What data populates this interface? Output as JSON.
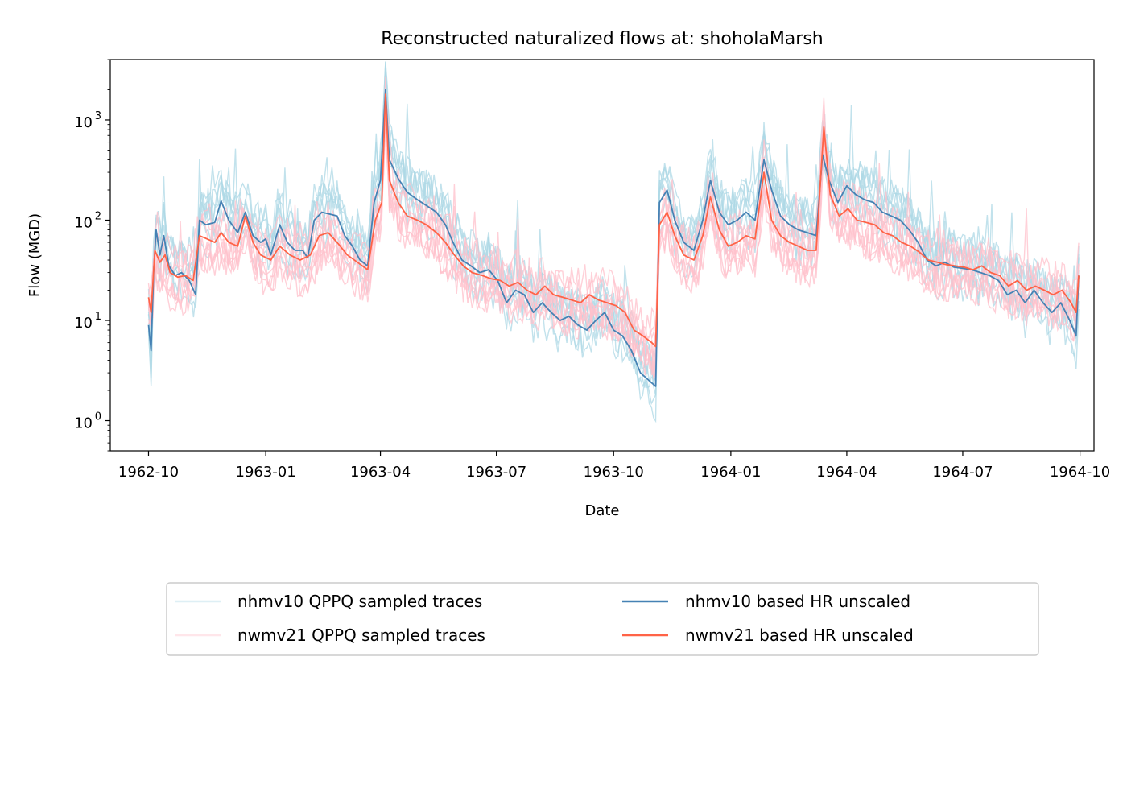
{
  "chart_data": {
    "type": "line",
    "title": "Reconstructed naturalized flows at: shoholaMarsh",
    "xlabel": "Date",
    "ylabel": "Flow (MGD)",
    "yscale": "log",
    "ylim": [
      0.5,
      4000
    ],
    "xlim": [
      "1962-09-01",
      "1964-10-12"
    ],
    "x_ticks": [
      "1962-10",
      "1963-01",
      "1963-04",
      "1963-07",
      "1963-10",
      "1964-01",
      "1964-04",
      "1964-07",
      "1964-10"
    ],
    "y_ticks": [
      {
        "base": "10",
        "exp": "0",
        "value": 1
      },
      {
        "base": "10",
        "exp": "1",
        "value": 10
      },
      {
        "base": "10",
        "exp": "2",
        "value": 100
      },
      {
        "base": "10",
        "exp": "3",
        "value": 1000
      }
    ],
    "grid": false,
    "legend_position": "bottom-center",
    "legend": [
      {
        "label": "nhmv10 QPPQ sampled traces",
        "color": "#add8e6",
        "opacity": 0.4
      },
      {
        "label": "nwmv21 QPPQ sampled traces",
        "color": "#ffc0cb",
        "opacity": 0.4
      },
      {
        "label": "nhmv10 based HR unscaled",
        "color": "#4682b4",
        "opacity": 1
      },
      {
        "label": "nwmv21 based HR unscaled",
        "color": "#ff6347",
        "opacity": 1
      }
    ],
    "series": [
      {
        "name": "nhmv10 based HR unscaled",
        "color": "#4682b4",
        "points": [
          [
            "1962-10-01",
            9
          ],
          [
            "1962-10-03",
            5
          ],
          [
            "1962-10-05",
            30
          ],
          [
            "1962-10-07",
            80
          ],
          [
            "1962-10-10",
            45
          ],
          [
            "1962-10-13",
            70
          ],
          [
            "1962-10-17",
            35
          ],
          [
            "1962-10-22",
            28
          ],
          [
            "1962-10-27",
            30
          ],
          [
            "1962-11-02",
            25
          ],
          [
            "1962-11-07",
            18
          ],
          [
            "1962-11-10",
            100
          ],
          [
            "1962-11-15",
            90
          ],
          [
            "1962-11-22",
            95
          ],
          [
            "1962-11-27",
            155
          ],
          [
            "1962-12-03",
            100
          ],
          [
            "1962-12-10",
            75
          ],
          [
            "1962-12-16",
            120
          ],
          [
            "1962-12-22",
            70
          ],
          [
            "1962-12-28",
            60
          ],
          [
            "1963-01-01",
            65
          ],
          [
            "1963-01-05",
            45
          ],
          [
            "1963-01-12",
            90
          ],
          [
            "1963-01-18",
            60
          ],
          [
            "1963-01-24",
            50
          ],
          [
            "1963-01-30",
            50
          ],
          [
            "1963-02-03",
            42
          ],
          [
            "1963-02-08",
            100
          ],
          [
            "1963-02-14",
            120
          ],
          [
            "1963-02-20",
            115
          ],
          [
            "1963-02-26",
            110
          ],
          [
            "1963-03-04",
            70
          ],
          [
            "1963-03-10",
            55
          ],
          [
            "1963-03-16",
            40
          ],
          [
            "1963-03-22",
            35
          ],
          [
            "1963-03-27",
            150
          ],
          [
            "1963-04-01",
            250
          ],
          [
            "1963-04-05",
            2000
          ],
          [
            "1963-04-08",
            400
          ],
          [
            "1963-04-15",
            260
          ],
          [
            "1963-04-22",
            190
          ],
          [
            "1963-04-30",
            160
          ],
          [
            "1963-05-07",
            140
          ],
          [
            "1963-05-15",
            120
          ],
          [
            "1963-05-22",
            90
          ],
          [
            "1963-05-28",
            60
          ],
          [
            "1963-06-04",
            40
          ],
          [
            "1963-06-11",
            35
          ],
          [
            "1963-06-18",
            30
          ],
          [
            "1963-06-25",
            32
          ],
          [
            "1963-07-02",
            25
          ],
          [
            "1963-07-09",
            15
          ],
          [
            "1963-07-16",
            20
          ],
          [
            "1963-07-23",
            18
          ],
          [
            "1963-07-30",
            12
          ],
          [
            "1963-08-06",
            15
          ],
          [
            "1963-08-13",
            12
          ],
          [
            "1963-08-20",
            10
          ],
          [
            "1963-08-27",
            11
          ],
          [
            "1963-09-03",
            9
          ],
          [
            "1963-09-10",
            8
          ],
          [
            "1963-09-17",
            10
          ],
          [
            "1963-09-24",
            12
          ],
          [
            "1963-10-01",
            8
          ],
          [
            "1963-10-08",
            7
          ],
          [
            "1963-10-15",
            5
          ],
          [
            "1963-10-22",
            3
          ],
          [
            "1963-10-29",
            2.5
          ],
          [
            "1963-11-03",
            2.2
          ],
          [
            "1963-11-06",
            150
          ],
          [
            "1963-11-12",
            200
          ],
          [
            "1963-11-18",
            100
          ],
          [
            "1963-11-25",
            60
          ],
          [
            "1963-12-03",
            50
          ],
          [
            "1963-12-10",
            100
          ],
          [
            "1963-12-16",
            250
          ],
          [
            "1963-12-23",
            120
          ],
          [
            "1963-12-30",
            90
          ],
          [
            "1964-01-06",
            100
          ],
          [
            "1964-01-13",
            120
          ],
          [
            "1964-01-20",
            100
          ],
          [
            "1964-01-27",
            400
          ],
          [
            "1964-02-02",
            200
          ],
          [
            "1964-02-09",
            110
          ],
          [
            "1964-02-16",
            90
          ],
          [
            "1964-02-23",
            80
          ],
          [
            "1964-03-01",
            75
          ],
          [
            "1964-03-08",
            70
          ],
          [
            "1964-03-13",
            450
          ],
          [
            "1964-03-18",
            250
          ],
          [
            "1964-03-25",
            150
          ],
          [
            "1964-04-01",
            220
          ],
          [
            "1964-04-08",
            180
          ],
          [
            "1964-04-15",
            160
          ],
          [
            "1964-04-22",
            150
          ],
          [
            "1964-04-29",
            120
          ],
          [
            "1964-05-06",
            110
          ],
          [
            "1964-05-13",
            100
          ],
          [
            "1964-05-20",
            80
          ],
          [
            "1964-05-27",
            60
          ],
          [
            "1964-06-03",
            40
          ],
          [
            "1964-06-10",
            35
          ],
          [
            "1964-06-17",
            38
          ],
          [
            "1964-06-24",
            34
          ],
          [
            "1964-07-01",
            33
          ],
          [
            "1964-07-08",
            32
          ],
          [
            "1964-07-15",
            30
          ],
          [
            "1964-07-22",
            28
          ],
          [
            "1964-07-29",
            25
          ],
          [
            "1964-08-05",
            18
          ],
          [
            "1964-08-12",
            20
          ],
          [
            "1964-08-19",
            15
          ],
          [
            "1964-08-26",
            20
          ],
          [
            "1964-09-02",
            15
          ],
          [
            "1964-09-09",
            12
          ],
          [
            "1964-09-16",
            15
          ],
          [
            "1964-09-23",
            10
          ],
          [
            "1964-09-28",
            7
          ],
          [
            "1964-09-30",
            28
          ]
        ]
      },
      {
        "name": "nwmv21 based HR unscaled",
        "color": "#ff6347",
        "points": [
          [
            "1962-10-01",
            17
          ],
          [
            "1962-10-03",
            12
          ],
          [
            "1962-10-06",
            50
          ],
          [
            "1962-10-10",
            38
          ],
          [
            "1962-10-14",
            45
          ],
          [
            "1962-10-18",
            30
          ],
          [
            "1962-10-24",
            27
          ],
          [
            "1962-10-30",
            28
          ],
          [
            "1962-11-05",
            25
          ],
          [
            "1962-11-10",
            70
          ],
          [
            "1962-11-16",
            65
          ],
          [
            "1962-11-22",
            60
          ],
          [
            "1962-11-27",
            75
          ],
          [
            "1962-12-03",
            60
          ],
          [
            "1962-12-10",
            55
          ],
          [
            "1962-12-16",
            110
          ],
          [
            "1962-12-22",
            60
          ],
          [
            "1962-12-28",
            45
          ],
          [
            "1963-01-05",
            40
          ],
          [
            "1963-01-12",
            55
          ],
          [
            "1963-01-20",
            45
          ],
          [
            "1963-01-28",
            40
          ],
          [
            "1963-02-05",
            45
          ],
          [
            "1963-02-12",
            70
          ],
          [
            "1963-02-19",
            75
          ],
          [
            "1963-02-26",
            60
          ],
          [
            "1963-03-06",
            45
          ],
          [
            "1963-03-14",
            38
          ],
          [
            "1963-03-22",
            32
          ],
          [
            "1963-03-28",
            100
          ],
          [
            "1963-04-02",
            150
          ],
          [
            "1963-04-05",
            1800
          ],
          [
            "1963-04-08",
            250
          ],
          [
            "1963-04-15",
            150
          ],
          [
            "1963-04-22",
            110
          ],
          [
            "1963-04-30",
            100
          ],
          [
            "1963-05-07",
            90
          ],
          [
            "1963-05-15",
            75
          ],
          [
            "1963-05-22",
            60
          ],
          [
            "1963-05-29",
            45
          ],
          [
            "1963-06-05",
            35
          ],
          [
            "1963-06-12",
            30
          ],
          [
            "1963-06-20",
            28
          ],
          [
            "1963-06-27",
            26
          ],
          [
            "1963-07-04",
            25
          ],
          [
            "1963-07-11",
            22
          ],
          [
            "1963-07-18",
            24
          ],
          [
            "1963-07-25",
            20
          ],
          [
            "1963-08-01",
            18
          ],
          [
            "1963-08-08",
            22
          ],
          [
            "1963-08-15",
            18
          ],
          [
            "1963-08-22",
            17
          ],
          [
            "1963-08-29",
            16
          ],
          [
            "1963-09-05",
            15
          ],
          [
            "1963-09-12",
            18
          ],
          [
            "1963-09-19",
            16
          ],
          [
            "1963-09-26",
            15
          ],
          [
            "1963-10-03",
            14
          ],
          [
            "1963-10-10",
            12
          ],
          [
            "1963-10-17",
            8
          ],
          [
            "1963-10-24",
            7
          ],
          [
            "1963-10-31",
            6
          ],
          [
            "1963-11-03",
            5.5
          ],
          [
            "1963-11-06",
            90
          ],
          [
            "1963-11-12",
            120
          ],
          [
            "1963-11-18",
            70
          ],
          [
            "1963-11-25",
            45
          ],
          [
            "1963-12-03",
            40
          ],
          [
            "1963-12-10",
            70
          ],
          [
            "1963-12-16",
            170
          ],
          [
            "1963-12-23",
            80
          ],
          [
            "1963-12-30",
            55
          ],
          [
            "1964-01-06",
            60
          ],
          [
            "1964-01-13",
            70
          ],
          [
            "1964-01-20",
            65
          ],
          [
            "1964-01-27",
            300
          ],
          [
            "1964-02-02",
            100
          ],
          [
            "1964-02-09",
            70
          ],
          [
            "1964-02-16",
            60
          ],
          [
            "1964-02-23",
            55
          ],
          [
            "1964-03-01",
            50
          ],
          [
            "1964-03-08",
            50
          ],
          [
            "1964-03-14",
            850
          ],
          [
            "1964-03-19",
            180
          ],
          [
            "1964-03-26",
            110
          ],
          [
            "1964-04-02",
            130
          ],
          [
            "1964-04-09",
            100
          ],
          [
            "1964-04-16",
            95
          ],
          [
            "1964-04-23",
            90
          ],
          [
            "1964-04-30",
            75
          ],
          [
            "1964-05-07",
            70
          ],
          [
            "1964-05-14",
            60
          ],
          [
            "1964-05-21",
            55
          ],
          [
            "1964-05-28",
            48
          ],
          [
            "1964-06-04",
            40
          ],
          [
            "1964-06-11",
            38
          ],
          [
            "1964-06-18",
            36
          ],
          [
            "1964-06-25",
            35
          ],
          [
            "1964-07-02",
            34
          ],
          [
            "1964-07-09",
            32
          ],
          [
            "1964-07-16",
            35
          ],
          [
            "1964-07-23",
            30
          ],
          [
            "1964-07-30",
            28
          ],
          [
            "1964-08-06",
            22
          ],
          [
            "1964-08-13",
            25
          ],
          [
            "1964-08-20",
            20
          ],
          [
            "1964-08-27",
            22
          ],
          [
            "1964-09-03",
            20
          ],
          [
            "1964-09-10",
            18
          ],
          [
            "1964-09-17",
            20
          ],
          [
            "1964-09-24",
            15
          ],
          [
            "1964-09-28",
            12
          ],
          [
            "1964-09-30",
            28
          ]
        ]
      }
    ],
    "traces": [
      {
        "group": "nhmv10 QPPQ sampled traces",
        "color": "#add8e6",
        "count": 8
      },
      {
        "group": "nwmv21 QPPQ sampled traces",
        "color": "#ffc0cb",
        "count": 8
      }
    ]
  }
}
